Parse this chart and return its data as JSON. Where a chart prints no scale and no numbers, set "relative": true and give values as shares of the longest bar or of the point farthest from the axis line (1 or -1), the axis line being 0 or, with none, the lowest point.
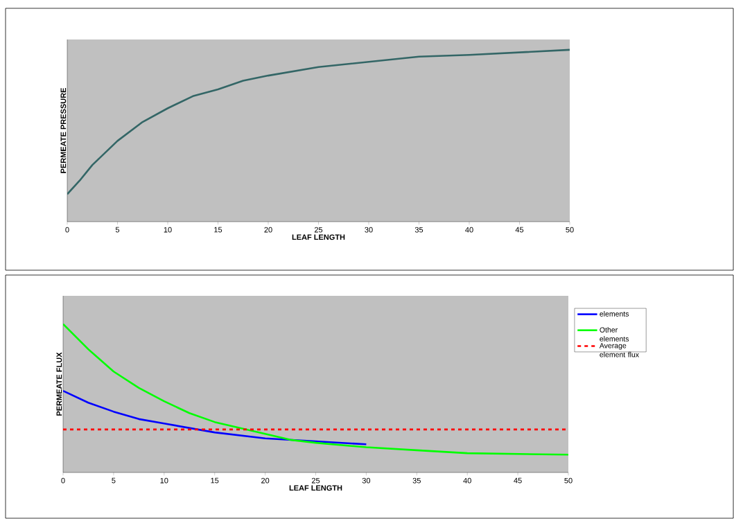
{
  "chart_data": [
    {
      "type": "line",
      "relative": true,
      "xlabel": "LEAF LENGTH",
      "ylabel": "PERMEATE PRESSURE",
      "xlim": [
        0,
        50
      ],
      "xticks": [
        0,
        5,
        10,
        15,
        20,
        25,
        30,
        35,
        40,
        45,
        50
      ],
      "tick_labels": "x",
      "series": [
        {
          "color": "#336666",
          "x": [
            0,
            1.25,
            2.5,
            5,
            7.5,
            10,
            12.5,
            15,
            17.5,
            20,
            25,
            30,
            35,
            40,
            50
          ],
          "values": [
            0.16,
            0.24,
            0.33,
            0.47,
            0.58,
            0.66,
            0.73,
            0.77,
            0.82,
            0.85,
            0.9,
            0.93,
            0.96,
            0.97,
            1.0
          ]
        }
      ]
    },
    {
      "type": "line",
      "relative": true,
      "xlabel": "LEAF LENGTH",
      "ylabel": "PERMEATE FLUX",
      "xlim": [
        0,
        50
      ],
      "xticks": [
        0,
        5,
        10,
        15,
        20,
        25,
        30,
        35,
        40,
        45,
        50
      ],
      "tick_labels": "x",
      "legend": "right",
      "series": [
        {
          "name": "elements",
          "color": "#0000ff",
          "x": [
            0,
            2.5,
            5,
            7.5,
            10,
            15,
            20,
            25,
            30
          ],
          "values": [
            0.55,
            0.47,
            0.41,
            0.36,
            0.33,
            0.27,
            0.23,
            0.21,
            0.19
          ]
        },
        {
          "name": "Other elements",
          "color": "#00ff00",
          "x": [
            0,
            2.5,
            5,
            7.5,
            10,
            12.5,
            15,
            17.5,
            20,
            22.5,
            25,
            30,
            35,
            40,
            50
          ],
          "values": [
            1.0,
            0.83,
            0.68,
            0.57,
            0.48,
            0.4,
            0.34,
            0.3,
            0.26,
            0.22,
            0.2,
            0.17,
            0.15,
            0.13,
            0.12
          ]
        }
      ],
      "ref_lines": [
        {
          "axis": "y",
          "value": 0.29,
          "label": "Average element flux",
          "color": "#ff0000",
          "line_style": "dashed"
        }
      ]
    }
  ]
}
